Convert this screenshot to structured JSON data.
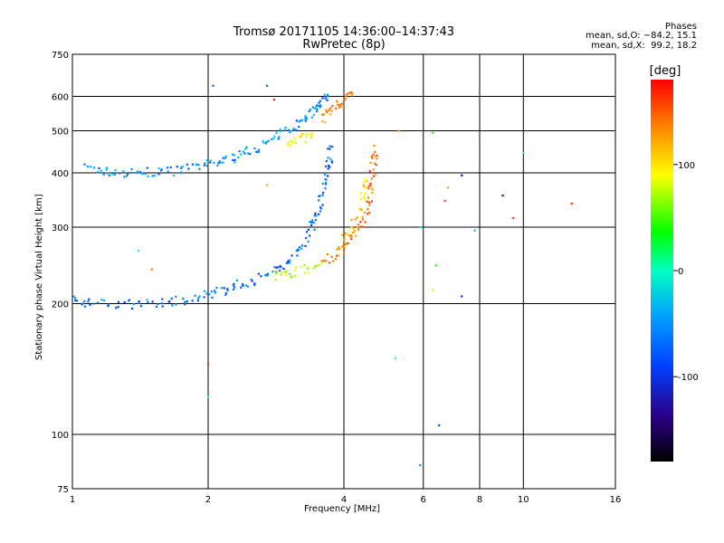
{
  "chart_data": {
    "type": "scatter",
    "title": "Tromsø 20171105 14:36:00–14:37:43",
    "subtitle": "RwPretec (8p)",
    "xlabel": "Frequency [MHz]",
    "ylabel": "Stationary phase Virtual Height [km]",
    "x_scale": "log",
    "y_scale": "log",
    "xlim": [
      1,
      16
    ],
    "ylim": [
      75,
      750
    ],
    "x_ticks": [
      1,
      2,
      4,
      6,
      8,
      10,
      16
    ],
    "y_ticks": [
      75,
      100,
      200,
      300,
      400,
      500,
      600,
      750
    ],
    "grid": true,
    "stats": {
      "heading": "Phases",
      "line_o": "mean, sd,O: −84.2, 15.1",
      "line_x": "mean, sd,X:  99.2, 18.2"
    },
    "colorbar": {
      "label": "[deg]",
      "range": [
        -180,
        180
      ],
      "ticks": [
        100,
        0,
        -100
      ]
    },
    "traces": [
      {
        "mode": "F2",
        "phase": -95,
        "points": [
          [
            1.08,
            410
          ],
          [
            1.2,
            402
          ],
          [
            1.35,
            400
          ],
          [
            1.5,
            401
          ],
          [
            1.7,
            405
          ],
          [
            1.9,
            413
          ],
          [
            2.1,
            423
          ],
          [
            2.3,
            436
          ],
          [
            2.5,
            452
          ],
          [
            2.75,
            475
          ],
          [
            3.0,
            502
          ],
          [
            3.2,
            527
          ],
          [
            3.4,
            555
          ],
          [
            3.55,
            580
          ],
          [
            3.7,
            610
          ]
        ]
      },
      {
        "mode": "F2",
        "phase": 140,
        "points": [
          [
            3.6,
            530
          ],
          [
            3.8,
            560
          ],
          [
            4.0,
            590
          ],
          [
            4.2,
            620
          ]
        ]
      },
      {
        "mode": "F2",
        "phase": 100,
        "points": [
          [
            3.0,
            470
          ],
          [
            3.2,
            480
          ],
          [
            3.4,
            490
          ]
        ]
      },
      {
        "mode": "F1",
        "phase": -105,
        "points": [
          [
            1.0,
            203
          ],
          [
            1.1,
            201
          ],
          [
            1.3,
            199
          ],
          [
            1.5,
            200
          ],
          [
            1.7,
            203
          ],
          [
            1.9,
            207
          ],
          [
            2.1,
            212
          ],
          [
            2.3,
            220
          ],
          [
            2.5,
            226
          ],
          [
            2.8,
            236
          ],
          [
            3.0,
            250
          ],
          [
            3.2,
            270
          ],
          [
            3.4,
            300
          ],
          [
            3.5,
            330
          ],
          [
            3.6,
            370
          ],
          [
            3.7,
            420
          ],
          [
            3.75,
            460
          ]
        ]
      },
      {
        "mode": "F1",
        "phase": 75,
        "points": [
          [
            2.8,
            232
          ],
          [
            3.0,
            234
          ],
          [
            3.3,
            240
          ],
          [
            3.6,
            250
          ]
        ]
      },
      {
        "mode": "F1",
        "phase": 145,
        "points": [
          [
            3.6,
            250
          ],
          [
            3.9,
            262
          ],
          [
            4.1,
            280
          ],
          [
            4.3,
            300
          ],
          [
            4.5,
            330
          ],
          [
            4.6,
            370
          ],
          [
            4.65,
            420
          ],
          [
            4.7,
            460
          ]
        ]
      },
      {
        "mode": "F1",
        "phase": 115,
        "points": [
          [
            3.9,
            270
          ],
          [
            4.2,
            300
          ],
          [
            4.4,
            350
          ],
          [
            4.5,
            400
          ]
        ]
      }
    ],
    "scatter_noise": [
      {
        "x": 2.05,
        "y": 635,
        "phase": -110
      },
      {
        "x": 2.7,
        "y": 635,
        "phase": -110
      },
      {
        "x": 2.8,
        "y": 590,
        "phase": 170
      },
      {
        "x": 2.7,
        "y": 375,
        "phase": 130
      },
      {
        "x": 1.4,
        "y": 265,
        "phase": -50
      },
      {
        "x": 1.5,
        "y": 240,
        "phase": 140
      },
      {
        "x": 2.0,
        "y": 145,
        "phase": 160
      },
      {
        "x": 2.0,
        "y": 122,
        "phase": -60
      },
      {
        "x": 5.3,
        "y": 500,
        "phase": 130
      },
      {
        "x": 5.2,
        "y": 150,
        "phase": -60
      },
      {
        "x": 5.9,
        "y": 300,
        "phase": -70
      },
      {
        "x": 5.9,
        "y": 85,
        "phase": -95
      },
      {
        "x": 6.3,
        "y": 495,
        "phase": 30
      },
      {
        "x": 6.4,
        "y": 245,
        "phase": 30
      },
      {
        "x": 6.3,
        "y": 215,
        "phase": 110
      },
      {
        "x": 6.5,
        "y": 105,
        "phase": -115
      },
      {
        "x": 6.7,
        "y": 345,
        "phase": 160
      },
      {
        "x": 6.8,
        "y": 370,
        "phase": 130
      },
      {
        "x": 7.3,
        "y": 395,
        "phase": -150
      },
      {
        "x": 7.3,
        "y": 208,
        "phase": -125
      },
      {
        "x": 7.8,
        "y": 295,
        "phase": -80
      },
      {
        "x": 9.0,
        "y": 355,
        "phase": -150
      },
      {
        "x": 9.5,
        "y": 315,
        "phase": 165
      },
      {
        "x": 10.0,
        "y": 445,
        "phase": -40
      },
      {
        "x": 12.8,
        "y": 340,
        "phase": 170
      }
    ]
  }
}
